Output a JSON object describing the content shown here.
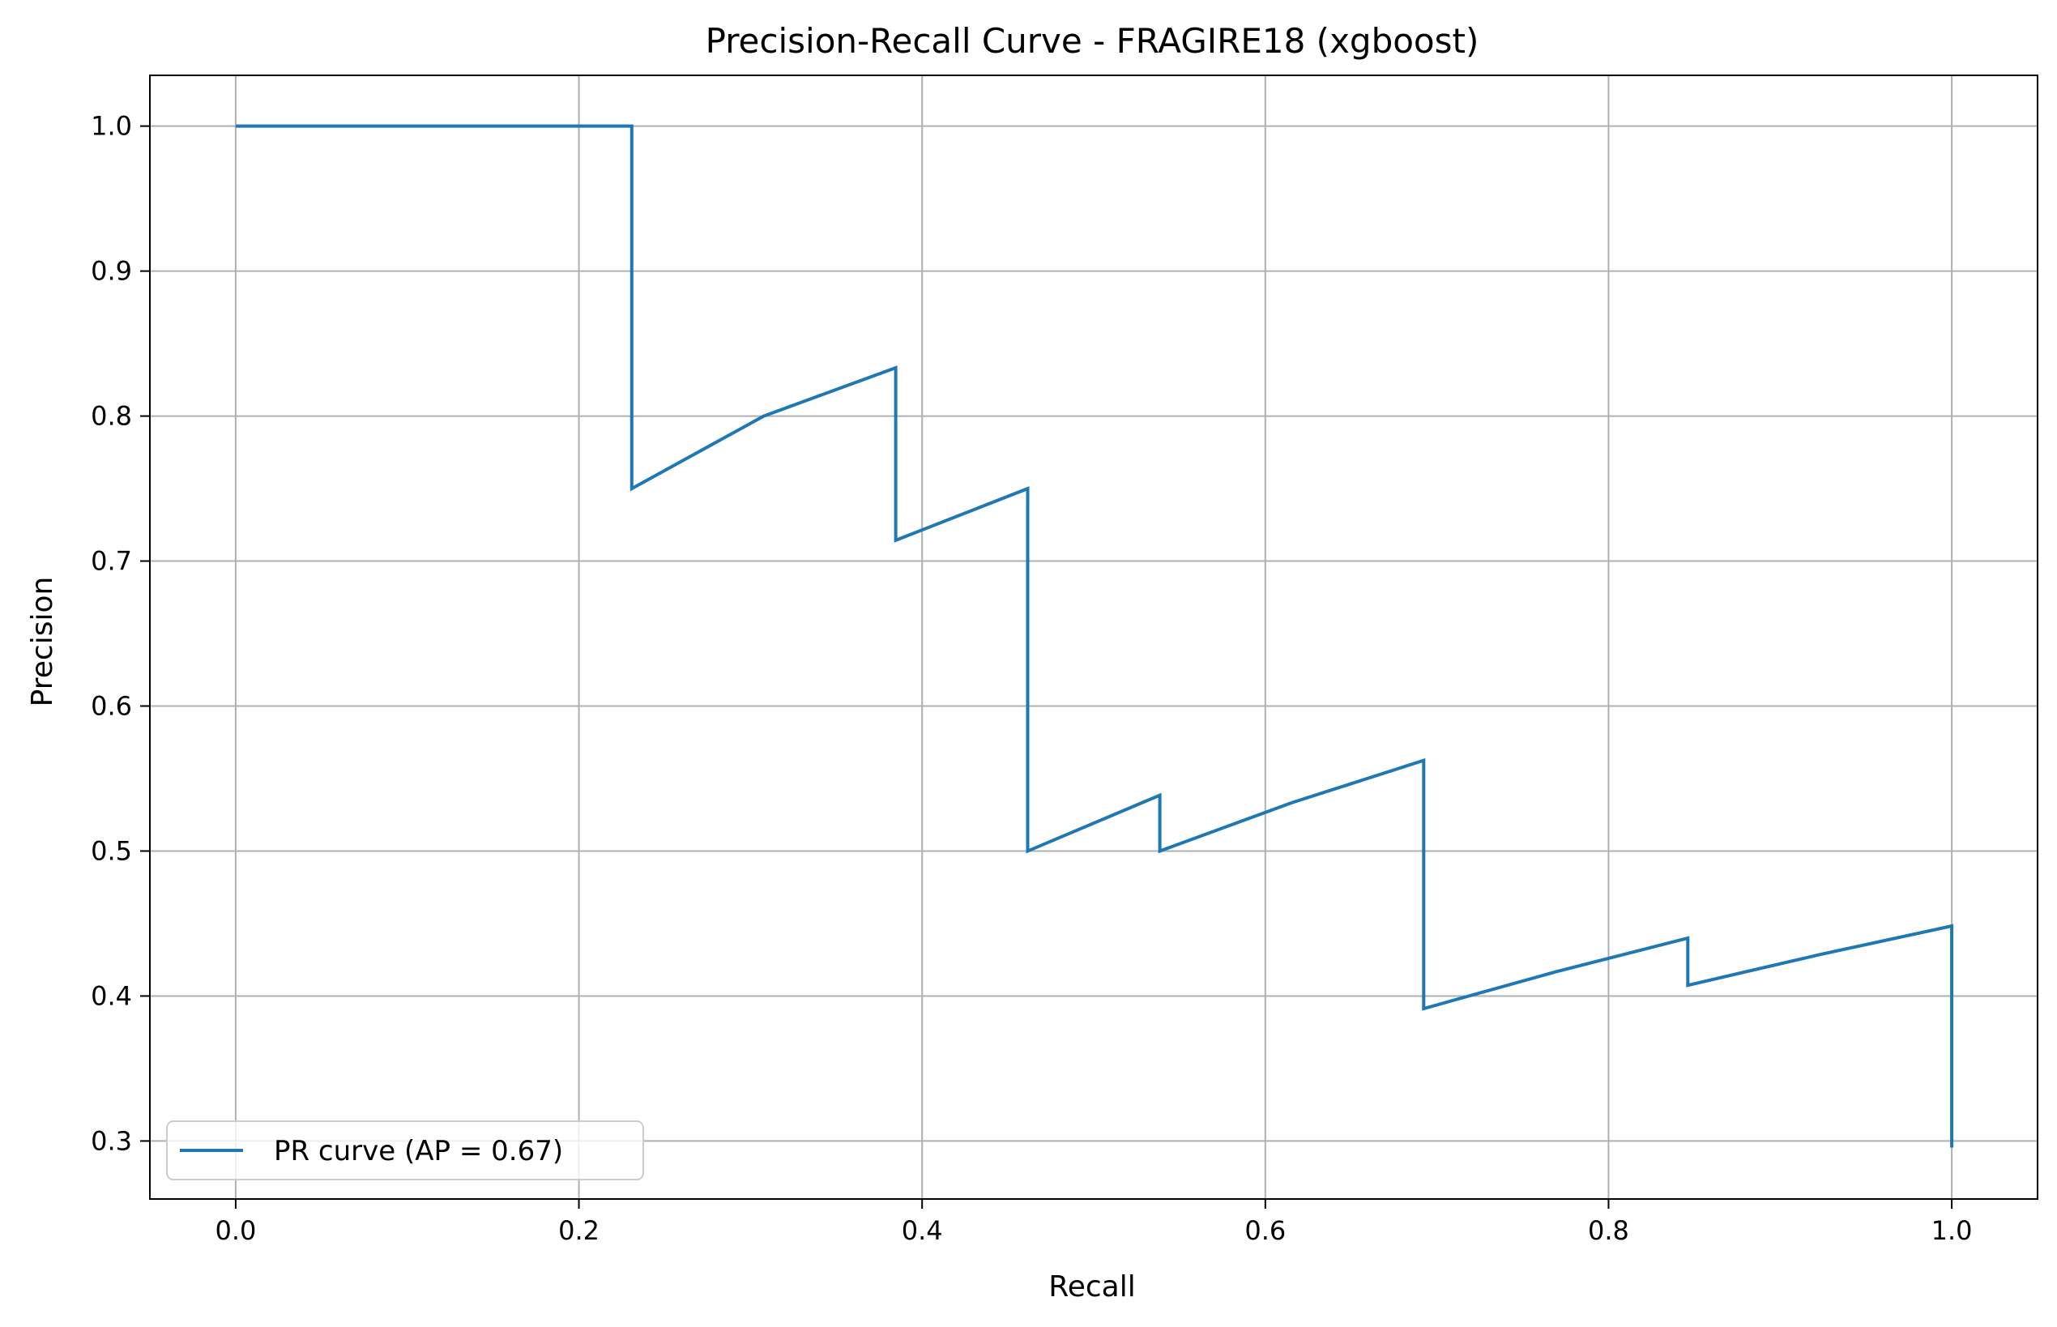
{
  "chart_data": {
    "type": "line",
    "title": "Precision-Recall Curve - FRAGIRE18 (xgboost)",
    "xlabel": "Recall",
    "ylabel": "Precision",
    "xlim": [
      -0.05,
      1.05
    ],
    "ylim": [
      0.26,
      1.035
    ],
    "xticks": [
      0.0,
      0.2,
      0.4,
      0.6,
      0.8,
      1.0
    ],
    "xtick_labels": [
      "0.0",
      "0.2",
      "0.4",
      "0.6",
      "0.8",
      "1.0"
    ],
    "yticks": [
      0.3,
      0.4,
      0.5,
      0.6,
      0.7,
      0.8,
      0.9,
      1.0
    ],
    "ytick_labels": [
      "0.3",
      "0.4",
      "0.5",
      "0.6",
      "0.7",
      "0.8",
      "0.9",
      "1.0"
    ],
    "grid": true,
    "legend_position": "lower-left",
    "series": [
      {
        "name": "PR curve (AP = 0.67)",
        "color": "#1f77b4",
        "x": [
          0.0,
          0.2308,
          0.2308,
          0.3077,
          0.3846,
          0.3846,
          0.4615,
          0.4615,
          0.5385,
          0.5385,
          0.6154,
          0.6923,
          0.6923,
          0.7692,
          0.8462,
          0.8462,
          0.9231,
          1.0,
          1.0
        ],
        "y": [
          1.0,
          1.0,
          0.75,
          0.8,
          0.8333,
          0.7143,
          0.75,
          0.5,
          0.5385,
          0.5,
          0.5333,
          0.5625,
          0.3913,
          0.4167,
          0.44,
          0.4074,
          0.4286,
          0.4483,
          0.2955
        ]
      }
    ]
  }
}
